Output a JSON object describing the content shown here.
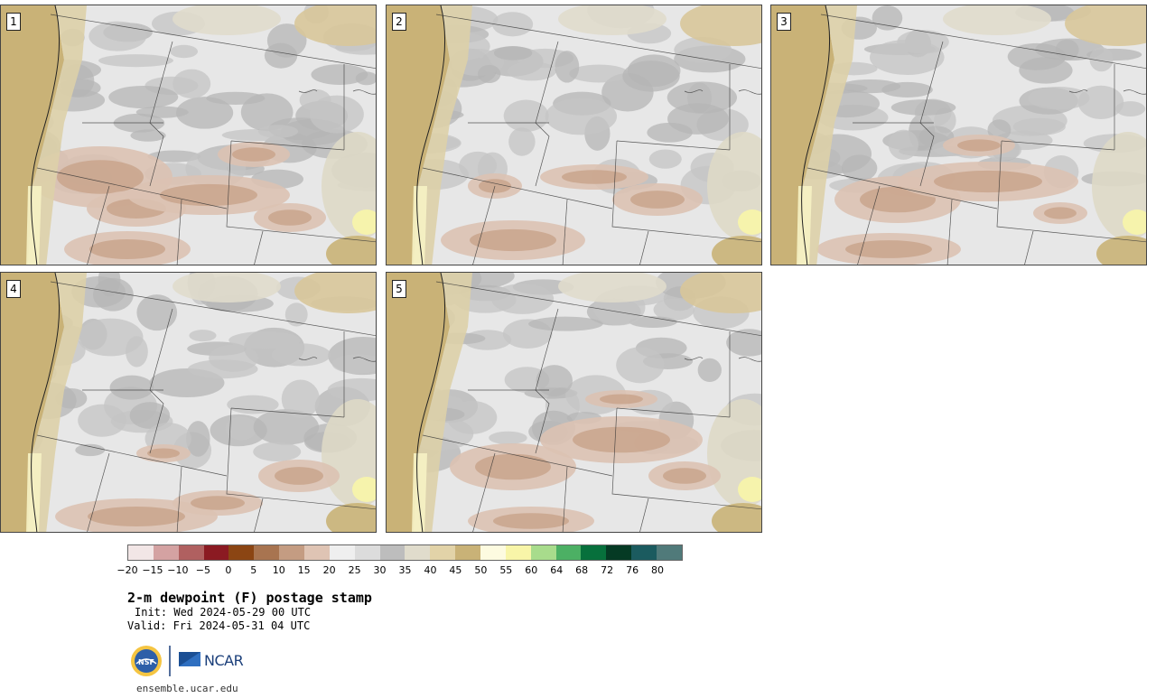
{
  "panels": [
    {
      "label": "1"
    },
    {
      "label": "2"
    },
    {
      "label": "3"
    },
    {
      "label": "4"
    },
    {
      "label": "5"
    }
  ],
  "colorbar": {
    "ticks": [
      "−20",
      "−15",
      "−10",
      "−5",
      "0",
      "5",
      "10",
      "15",
      "20",
      "25",
      "30",
      "35",
      "40",
      "45",
      "50",
      "55",
      "60",
      "64",
      "68",
      "72",
      "76",
      "80"
    ],
    "colors": [
      "#f2e6e6",
      "#d4a2a2",
      "#b06060",
      "#8b1a22",
      "#8b4513",
      "#a87450",
      "#c49c82",
      "#dfc4b4",
      "#efefef",
      "#dcdcdc",
      "#bdbdbd",
      "#e0dccc",
      "#e2d3a8",
      "#c9b277",
      "#fdfbe0",
      "#f8f5a8",
      "#a8dc8c",
      "#4cb064",
      "#07703c",
      "#053a24",
      "#1b5b5f",
      "#507a7a"
    ]
  },
  "title": "2-m dewpoint (F) postage stamp",
  "init": "Init: Wed 2024-05-29 00 UTC",
  "valid": "Valid: Fri 2024-05-31 04 UTC",
  "logos": {
    "nsf": "NSF",
    "ncar": "NCAR"
  },
  "site": "ensemble.ucar.edu"
}
